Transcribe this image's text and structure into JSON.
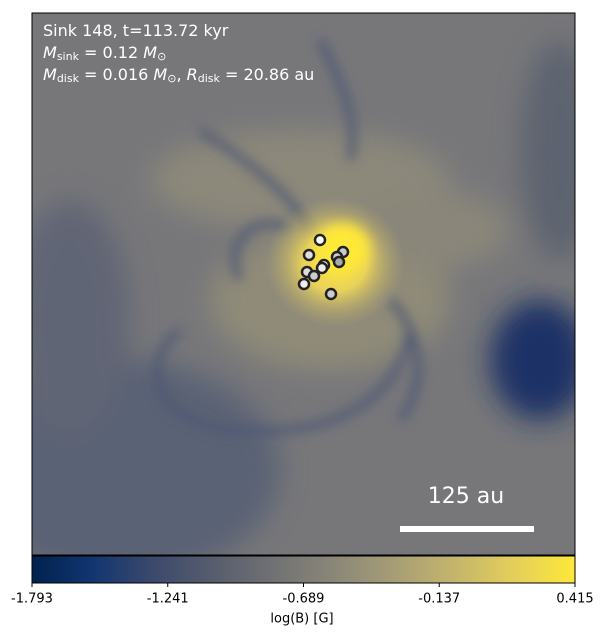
{
  "chart_data": {
    "type": "image",
    "annotation_lines": [
      [
        {
          "text": "Sink 148, t=113.72 kyr"
        }
      ],
      [
        {
          "text": "M",
          "italic": true
        },
        {
          "sub": "sink"
        },
        {
          "text": " = 0.12 "
        },
        {
          "text": "M",
          "italic": true
        },
        {
          "sub": "⊙"
        }
      ],
      [
        {
          "text": "M",
          "italic": true
        },
        {
          "sub": "disk"
        },
        {
          "text": " = 0.016 "
        },
        {
          "text": "M",
          "italic": true
        },
        {
          "sub": "⊙"
        },
        {
          "text": ", "
        },
        {
          "text": "R",
          "italic": true
        },
        {
          "sub": "disk"
        },
        {
          "text": " = 20.86 au"
        }
      ]
    ],
    "scale_bar_label": "125 au",
    "colorbar": {
      "label": "log(B) [G]",
      "lim": [
        -1.793,
        0.415
      ],
      "ticks": [
        -1.793,
        -1.241,
        -0.689,
        -0.137,
        0.415
      ],
      "colormap": "cividis",
      "colors": [
        "#00224e",
        "#123570",
        "#3b496c",
        "#575d6d",
        "#707173",
        "#8a8779",
        "#a69d75",
        "#c4b56c",
        "#e4cf5b",
        "#fee838"
      ]
    }
  }
}
